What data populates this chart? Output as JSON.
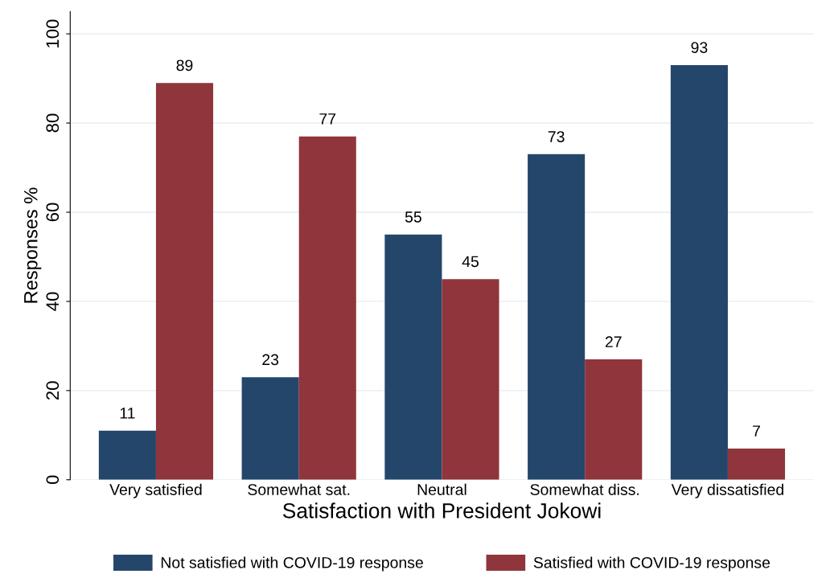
{
  "chart_data": {
    "type": "bar",
    "xlabel": "Satisfaction with President Jokowi",
    "ylabel": "Responses %",
    "categories": [
      "Very satisfied",
      "Somewhat sat.",
      "Neutral",
      "Somewhat diss.",
      "Very dissatisfied"
    ],
    "series": [
      {
        "name": "Not satisfied with COVID-19 response",
        "color": "#24466b",
        "values": [
          11,
          23,
          55,
          73,
          93
        ]
      },
      {
        "name": "Satisfied with COVID-19 response",
        "color": "#8f353b",
        "values": [
          89,
          77,
          45,
          27,
          7
        ]
      }
    ],
    "ylim": [
      0,
      105
    ],
    "yticks": [
      0,
      20,
      40,
      60,
      80,
      100
    ],
    "grid": "y",
    "legend": "bottom",
    "data_labels": true
  }
}
